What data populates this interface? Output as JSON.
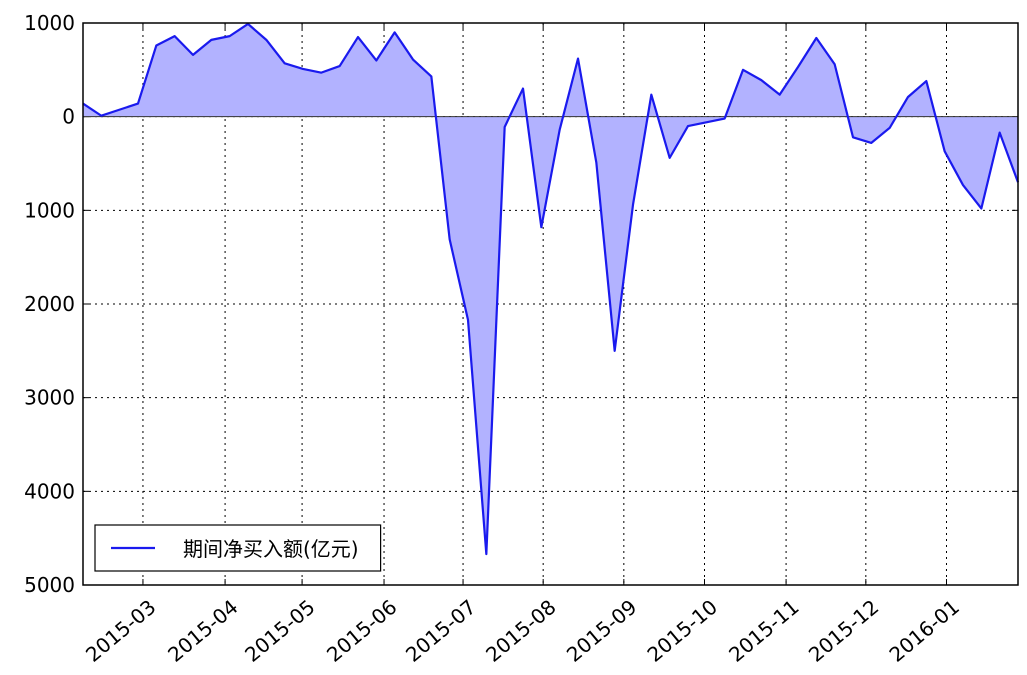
{
  "chart_data": {
    "type": "area",
    "x": [
      0,
      1,
      2,
      3,
      4,
      5,
      6,
      7,
      8,
      9,
      10,
      11,
      12,
      13,
      14,
      15,
      16,
      17,
      18,
      19,
      20,
      21,
      22,
      23,
      24,
      25,
      26,
      27,
      28,
      29,
      30,
      31,
      32,
      33,
      34,
      35,
      36,
      37,
      38,
      39,
      40,
      41,
      42,
      43,
      44,
      45,
      46,
      47,
      48,
      49,
      50,
      51
    ],
    "series": [
      {
        "name": "期间净买入额(亿元)",
        "color": "#1a1aee",
        "fill_color": "#b2b2ff",
        "values": [
          140,
          10,
          75,
          140,
          760,
          860,
          660,
          820,
          860,
          990,
          820,
          570,
          510,
          470,
          540,
          850,
          600,
          900,
          610,
          430,
          -1310,
          -2170,
          -4670,
          -110,
          300,
          -1180,
          -140,
          620,
          -490,
          -2500,
          -940,
          235,
          -440,
          -100,
          -60,
          -20,
          500,
          390,
          235,
          530,
          840,
          560,
          -220,
          -280,
          -120,
          210,
          380,
          -370,
          -730,
          -980,
          -170,
          -700
        ]
      }
    ],
    "xlim": [
      0,
      51
    ],
    "xticks": [
      {
        "value": 3.27,
        "label": "2015-03"
      },
      {
        "value": 7.75,
        "label": "2015-04"
      },
      {
        "value": 11.95,
        "label": "2015-05"
      },
      {
        "value": 16.42,
        "label": "2015-06"
      },
      {
        "value": 20.73,
        "label": "2015-07"
      },
      {
        "value": 25.1,
        "label": "2015-08"
      },
      {
        "value": 29.5,
        "label": "2015-09"
      },
      {
        "value": 33.9,
        "label": "2015-10"
      },
      {
        "value": 38.35,
        "label": "2015-11"
      },
      {
        "value": 42.7,
        "label": "2015-12"
      },
      {
        "value": 47.1,
        "label": "2016-01"
      }
    ],
    "ylim": [
      -5000,
      1000
    ],
    "yticks": [
      1000,
      0,
      {
        "value": -1000,
        "label": "1000"
      },
      {
        "value": -2000,
        "label": "2000"
      },
      {
        "value": -3000,
        "label": "3000"
      },
      {
        "value": -4000,
        "label": "4000"
      },
      {
        "value": -5000,
        "label": "5000"
      }
    ],
    "grid": true,
    "legend": "lower left"
  }
}
